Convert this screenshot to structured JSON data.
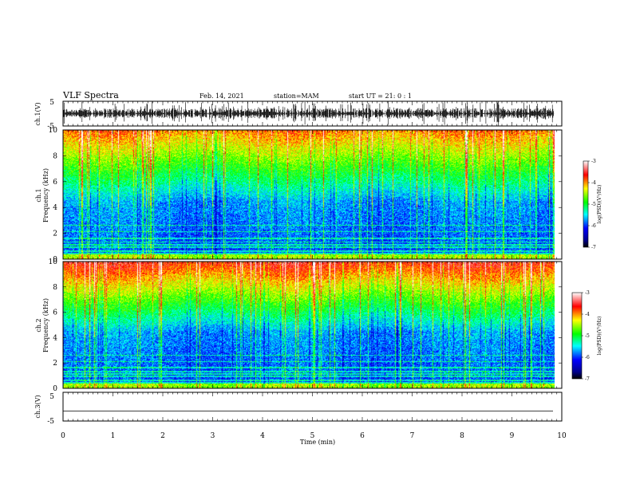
{
  "header": {
    "title": "VLF Spectra",
    "date": "Feb. 14, 2021",
    "station": "station=MAM",
    "start": "start  UT =   21: 0  : 1"
  },
  "chart_data": [
    {
      "type": "line",
      "name": "ch1-waveform",
      "ylabel": "ch.1(V)",
      "ylim": [
        -5,
        5
      ],
      "yticks": [
        "5",
        "-5"
      ],
      "xlim": [
        0,
        10
      ],
      "description_style": "dense impulsive waveform"
    },
    {
      "type": "heatmap",
      "name": "ch1-spectrogram",
      "ylabel_line1": "ch.1",
      "ylabel_line2": "Frequency  (kHz)",
      "ylim": [
        0,
        10
      ],
      "yticks": [
        "0",
        "2",
        "4",
        "6",
        "8",
        "10"
      ],
      "xlim": [
        0,
        9.85
      ],
      "colorbar": {
        "label": "log(PSD)(V²/Hz)",
        "range": [
          -7,
          -3
        ],
        "ticks": [
          "-3",
          "-4",
          "-5",
          "-6",
          "-7"
        ]
      }
    },
    {
      "type": "heatmap",
      "name": "ch2-spectrogram",
      "ylabel_line1": "ch.2",
      "ylabel_line2": "Frequency  (kHz)",
      "ylim": [
        0,
        10
      ],
      "yticks": [
        "0",
        "2",
        "4",
        "6",
        "8",
        "10"
      ],
      "xlim": [
        0,
        9.85
      ],
      "colorbar": {
        "label": "log(PSD)(V²/Hz)",
        "range": [
          -7,
          -3
        ],
        "ticks": [
          "-3",
          "-4",
          "-5",
          "-6",
          "-7"
        ]
      }
    },
    {
      "type": "line",
      "name": "ch3-waveform",
      "ylabel": "ch.3(V)",
      "ylim": [
        -5,
        5
      ],
      "yticks": [
        "5",
        "-5"
      ],
      "value_level": -1.5
    }
  ],
  "x_axis": {
    "label": "Time  (min)",
    "ticks": [
      "0",
      "1",
      "2",
      "3",
      "4",
      "5",
      "6",
      "7",
      "8",
      "9",
      "10"
    ],
    "range": [
      0,
      10
    ]
  },
  "colors": {
    "low": "#00008b",
    "blue": "#0000ff",
    "cyan": "#00ffff",
    "green": "#00ff00",
    "yellow": "#ffff00",
    "red": "#ff0000",
    "white": "#ffffff"
  }
}
